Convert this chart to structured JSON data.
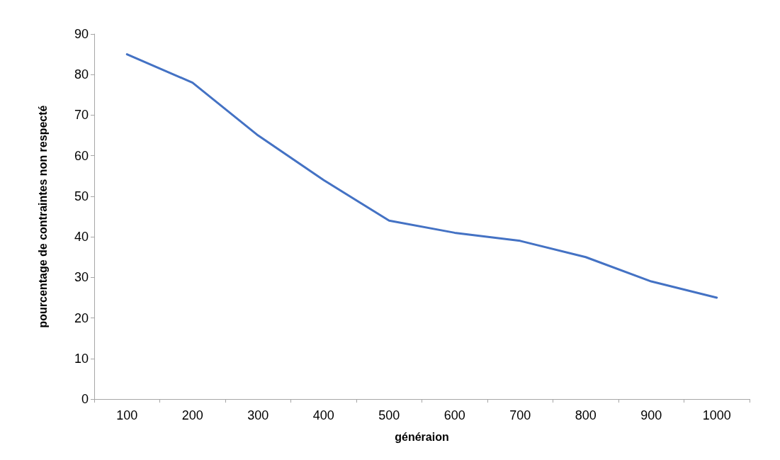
{
  "chart_data": {
    "type": "line",
    "xlabel": "généraion",
    "ylabel": "pourcentage de contraintes non respecté",
    "categories": [
      "100",
      "200",
      "300",
      "400",
      "500",
      "600",
      "700",
      "800",
      "900",
      "1000"
    ],
    "series": [
      {
        "color": "#4472c4",
        "values": [
          85,
          78,
          65,
          54,
          44,
          41,
          39,
          35,
          29,
          25
        ]
      }
    ],
    "ylim": [
      0,
      90
    ],
    "yticks": [
      0,
      10,
      20,
      30,
      40,
      50,
      60,
      70,
      80,
      90
    ],
    "grid": false,
    "marker": "none",
    "line_style": "solid"
  }
}
